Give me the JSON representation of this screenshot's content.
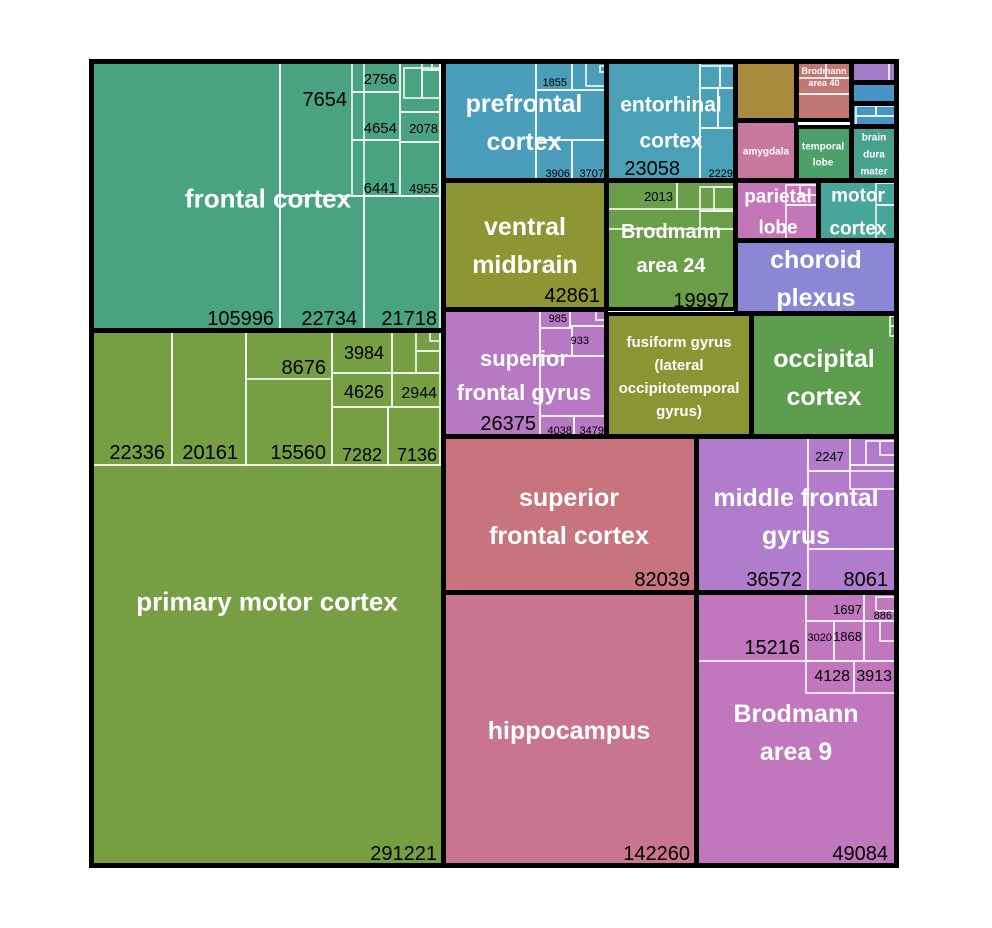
{
  "chart_data": {
    "type": "treemap",
    "colors": {
      "frontal_cortex": "#4aa380",
      "primary_motor_cortex": "#769f44",
      "prefrontal_cortex": "#4a9dbb",
      "entorhinal_cortex": "#4aa0b6",
      "ventral_midbrain": "#8e9533",
      "brodmann_area_24": "#6b9e48",
      "superior_frontal_gyrus": "#b779c3",
      "fusiform_gyrus": "#8c9534",
      "occipital_cortex": "#5b9d4c",
      "superior_frontal_cortex": "#c8747f",
      "hippocampus": "#c97590",
      "middle_frontal_gyrus": "#b07ccb",
      "brodmann_area_9": "#c077bd",
      "choroid_plexus": "#8b87d5",
      "parietal_lobe": "#c477b8",
      "motor_cortex": "#48a59a",
      "amygdala": "#c8779f",
      "temporal_lobe": "#4a9f6a",
      "brain_dura_mater": "#48a08d",
      "tile_a": "#aa8a3c",
      "tile_b": "#c27774",
      "tile_c": "#a77bcc",
      "tile_d": "#4596c6"
    },
    "regions": [
      {
        "name": "frontal cortex",
        "labels": [
          "frontal cortex"
        ],
        "total": 105996,
        "visible_values": [
          7654,
          2756,
          4654,
          2078,
          6441,
          4955,
          22734,
          21718
        ]
      },
      {
        "name": "primary motor cortex",
        "labels": [
          "primary motor cortex"
        ],
        "total": 291221,
        "visible_values": [
          22336,
          20161,
          15560,
          8676,
          3984,
          4626,
          2944,
          7282,
          7136
        ]
      },
      {
        "name": "prefrontal cortex",
        "labels": [
          "prefrontal",
          "cortex"
        ],
        "visible_values": [
          1855,
          3906,
          3707
        ]
      },
      {
        "name": "entorhinal cortex",
        "labels": [
          "entorhinal",
          "cortex"
        ],
        "total": 23058,
        "visible_values": [
          2229
        ]
      },
      {
        "name": "ventral midbrain",
        "labels": [
          "ventral",
          "midbrain"
        ],
        "total": 42861
      },
      {
        "name": "Brodmann area 24",
        "labels": [
          "Brodmann",
          "area 24"
        ],
        "total": 19997,
        "visible_values": [
          2013
        ]
      },
      {
        "name": "superior frontal gyrus",
        "labels": [
          "superior",
          "frontal gyrus"
        ],
        "total": 26375,
        "visible_values": [
          985,
          933,
          4038,
          3479
        ]
      },
      {
        "name": "fusiform gyrus (lateral occipitotemporal gyrus)",
        "labels": [
          "fusiform gyrus",
          "(lateral",
          "occipitotemporal",
          "gyrus)"
        ]
      },
      {
        "name": "occipital cortex",
        "labels": [
          "occipital",
          "cortex"
        ]
      },
      {
        "name": "superior frontal cortex",
        "labels": [
          "superior",
          "frontal cortex"
        ],
        "total": 82039
      },
      {
        "name": "hippocampus",
        "labels": [
          "hippocampus"
        ],
        "total": 142260
      },
      {
        "name": "middle frontal gyrus",
        "labels": [
          "middle frontal",
          "gyrus"
        ],
        "total": 36572,
        "visible_values": [
          2247,
          8061
        ]
      },
      {
        "name": "Brodmann area 9",
        "labels": [
          "Brodmann",
          "area 9"
        ],
        "total": 49084,
        "visible_values": [
          15216,
          1697,
          886,
          3020,
          1868,
          4128,
          3913
        ]
      },
      {
        "name": "choroid plexus",
        "labels": [
          "choroid",
          "plexus"
        ]
      },
      {
        "name": "parietal lobe",
        "labels": [
          "parietal",
          "lobe"
        ]
      },
      {
        "name": "motor cortex",
        "labels": [
          "motor",
          "cortex"
        ]
      },
      {
        "name": "amygdala",
        "labels": [
          "amygdala"
        ]
      },
      {
        "name": "temporal lobe",
        "labels": [
          "temporal",
          "lobe"
        ]
      },
      {
        "name": "brain dura mater",
        "labels": [
          "brain",
          "dura",
          "mater"
        ]
      },
      {
        "name": "Brodmann area 40",
        "labels": [
          "Brodmann",
          "area 40"
        ]
      }
    ]
  }
}
